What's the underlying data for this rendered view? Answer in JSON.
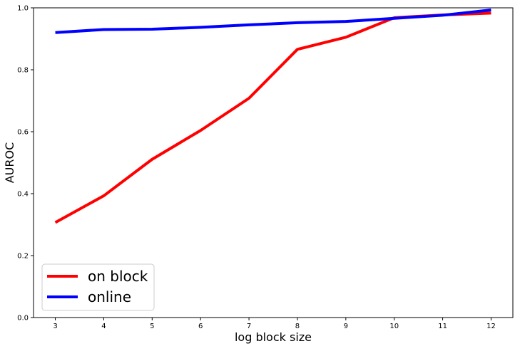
{
  "chart_data": {
    "type": "line",
    "title": "",
    "xlabel": "log block size",
    "ylabel": "AUROC",
    "x": [
      3,
      4,
      5,
      6,
      7,
      8,
      9,
      10,
      11,
      12
    ],
    "xticks": [
      "3",
      "4",
      "5",
      "6",
      "7",
      "8",
      "9",
      "10",
      "11",
      "12"
    ],
    "yticks": [
      "0.0",
      "0.2",
      "0.4",
      "0.6",
      "0.8",
      "1.0"
    ],
    "xlim": [
      2.55,
      12.45
    ],
    "ylim": [
      0.0,
      1.0
    ],
    "grid": false,
    "legend_position": "lower-left",
    "series": [
      {
        "name": "on block",
        "color": "#ff0000",
        "values": [
          0.307,
          0.393,
          0.511,
          0.604,
          0.708,
          0.866,
          0.905,
          0.968,
          0.977,
          0.983
        ]
      },
      {
        "name": "online",
        "color": "#0000ff",
        "values": [
          0.92,
          0.93,
          0.931,
          0.937,
          0.945,
          0.952,
          0.956,
          0.966,
          0.976,
          0.993
        ]
      }
    ]
  }
}
